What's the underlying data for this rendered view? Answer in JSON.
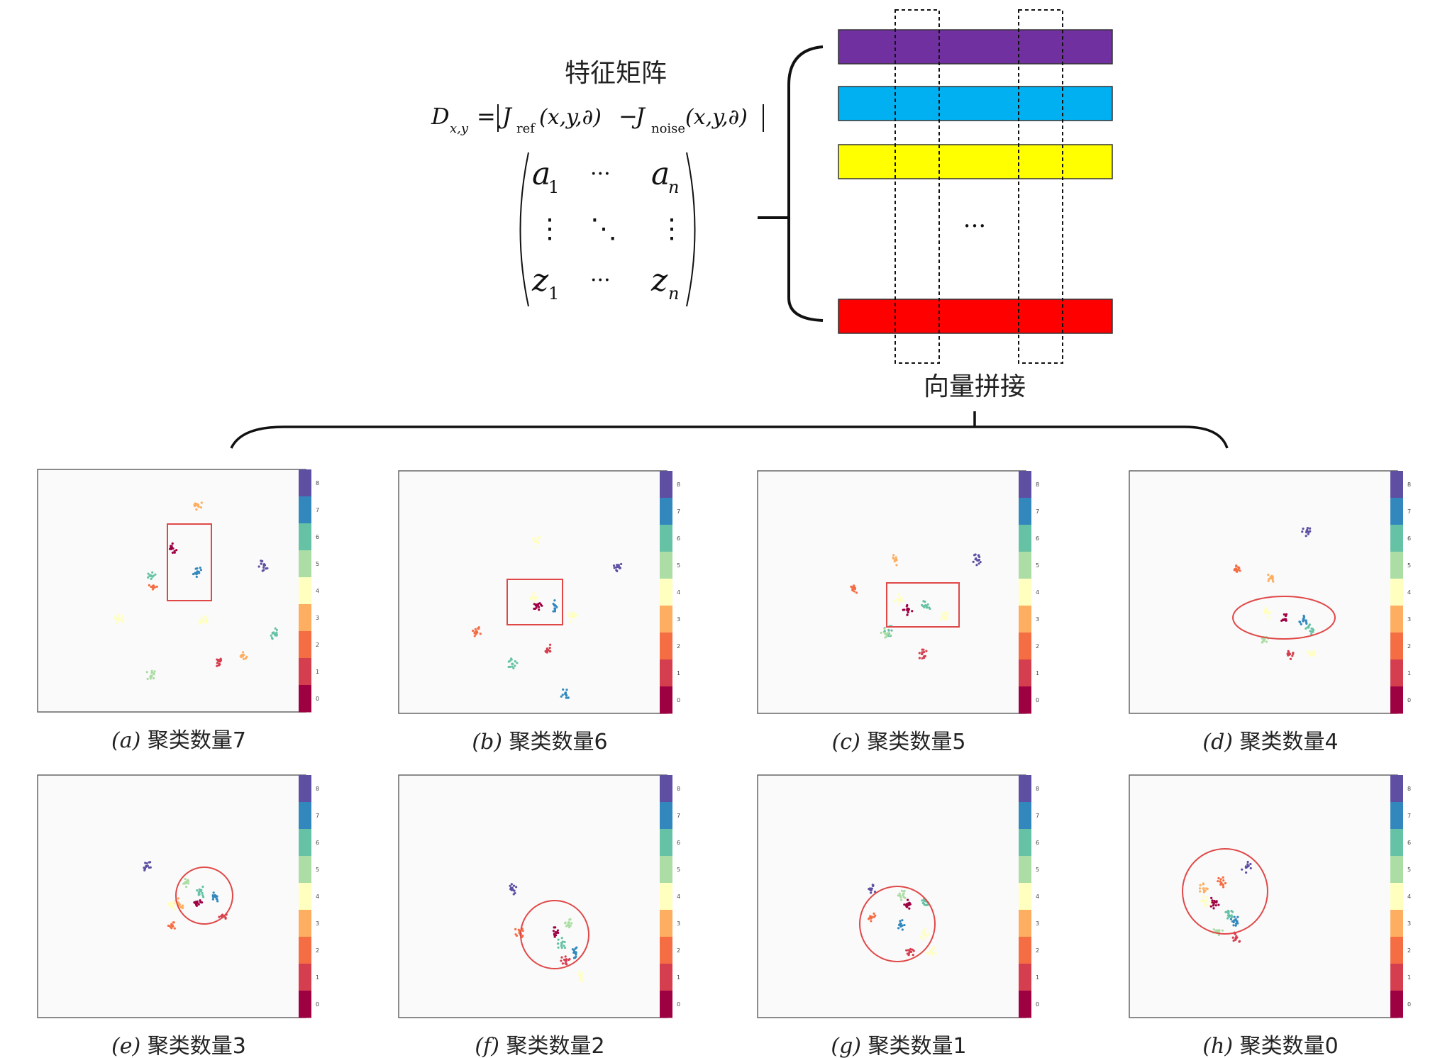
{
  "header": {
    "matrix_title": "特征矩阵",
    "formula": {
      "lhs": "D",
      "lhs_sub": "x,y",
      "eq": "=",
      "term1": "J",
      "term1_sub": "ref",
      "args": "(x,y,∂)",
      "minus": "−",
      "term2": "J",
      "term2_sub": "noise"
    },
    "matrix_cells": {
      "a1": "a",
      "a1_sub": "1",
      "an": "a",
      "an_sub": "n",
      "z1": "z",
      "z1_sub": "1",
      "zn": "z",
      "zn_sub": "n",
      "hdots": "···",
      "vdots": "⋮",
      "ddots": "⋱"
    },
    "stack_ellipsis": "···",
    "concat_label": "向量拼接"
  },
  "feature_bars": [
    {
      "color": "#7030A0"
    },
    {
      "color": "#00B0F0"
    },
    {
      "color": "#FFFF00"
    },
    {
      "color": "#FF0000"
    }
  ],
  "colorbar": {
    "ticks": [
      "8",
      "7",
      "6",
      "5",
      "4",
      "3",
      "2",
      "1",
      "0"
    ],
    "colors": [
      "#5E4FA2",
      "#3288BD",
      "#66C2A5",
      "#ABDDA4",
      "#FFFFBF",
      "#FDAE61",
      "#F46D43",
      "#D53E4F",
      "#9E0142"
    ]
  },
  "panels": [
    {
      "tag": "(a)",
      "caption": "聚类数量7",
      "highlight": "rect"
    },
    {
      "tag": "(b)",
      "caption": "聚类数量6",
      "highlight": "rect"
    },
    {
      "tag": "(c)",
      "caption": "聚类数量5",
      "highlight": "rect"
    },
    {
      "tag": "(d)",
      "caption": "聚类数量4",
      "highlight": "ellipse"
    },
    {
      "tag": "(e)",
      "caption": "聚类数量3",
      "highlight": "circle"
    },
    {
      "tag": "(f)",
      "caption": "聚类数量2",
      "highlight": "circle"
    },
    {
      "tag": "(g)",
      "caption": "聚类数量1",
      "highlight": "circle"
    },
    {
      "tag": "(h)",
      "caption": "聚类数量0",
      "highlight": "circle"
    }
  ]
}
